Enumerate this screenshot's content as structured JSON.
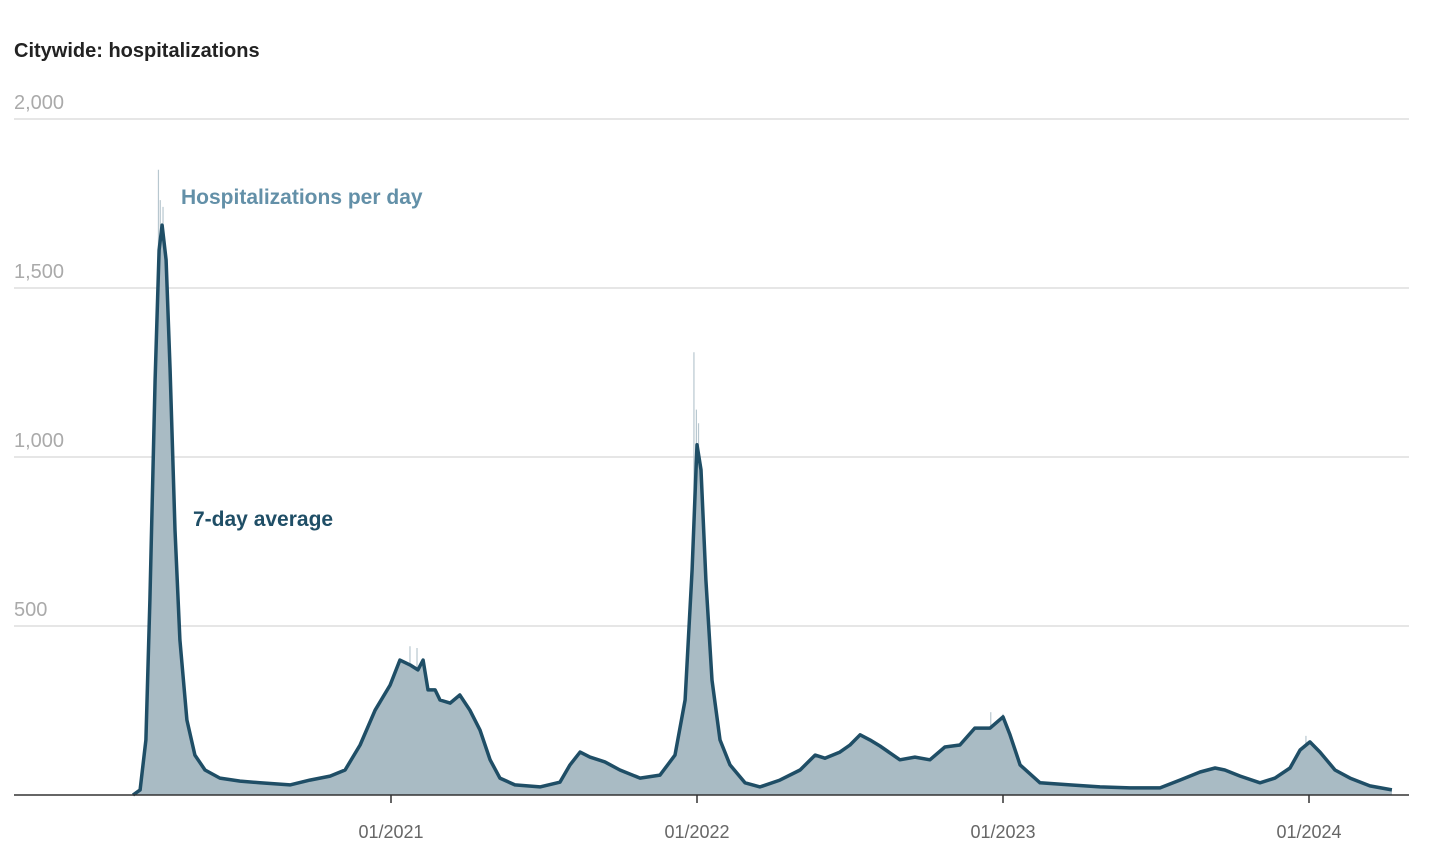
{
  "chart_data": {
    "type": "area",
    "title": "Citywide: hospitalizations",
    "xlabel": "",
    "ylabel": "",
    "ylim": [
      0,
      2000
    ],
    "xlim": [
      2020.15,
      2024.3
    ],
    "grid": true,
    "y_ticks": [
      {
        "value": 500,
        "label": "500"
      },
      {
        "value": 1000,
        "label": "1,000"
      },
      {
        "value": 1500,
        "label": "1,500"
      },
      {
        "value": 2000,
        "label": "2,000"
      }
    ],
    "x_ticks": [
      {
        "value": 2021,
        "label": "01/2021"
      },
      {
        "value": 2022,
        "label": "01/2022"
      },
      {
        "value": 2023,
        "label": "01/2023"
      },
      {
        "value": 2024,
        "label": "01/2024"
      }
    ],
    "annotations": [
      {
        "text": "Hospitalizations per day",
        "series": "daily"
      },
      {
        "text": "7-day average",
        "series": "average"
      }
    ],
    "colors": {
      "daily": "#a9bbc4",
      "average": "#1f4e66",
      "daily_label": "#6390a8"
    },
    "daily_spikes": [
      {
        "x": 2020.24,
        "y": 1850
      },
      {
        "x": 2020.246,
        "y": 1760
      },
      {
        "x": 2020.255,
        "y": 1740
      },
      {
        "x": 2021.062,
        "y": 440
      },
      {
        "x": 2021.085,
        "y": 435
      },
      {
        "x": 2021.99,
        "y": 1310
      },
      {
        "x": 2021.998,
        "y": 1140
      },
      {
        "x": 2022.005,
        "y": 1100
      },
      {
        "x": 2022.96,
        "y": 245
      },
      {
        "x": 2023.0,
        "y": 240
      },
      {
        "x": 2023.99,
        "y": 175
      }
    ],
    "series": [
      {
        "name": "7-day average",
        "x": [
          2020.157,
          2020.18,
          2020.199,
          2020.212,
          2020.229,
          2020.242,
          2020.252,
          2020.265,
          2020.278,
          2020.294,
          2020.31,
          2020.333,
          2020.359,
          2020.392,
          2020.441,
          2020.507,
          2020.572,
          2020.67,
          2020.735,
          2020.801,
          2020.85,
          2020.899,
          2020.948,
          2020.997,
          2021.029,
          2021.062,
          2021.088,
          2021.105,
          2021.121,
          2021.144,
          2021.16,
          2021.193,
          2021.225,
          2021.258,
          2021.291,
          2021.324,
          2021.356,
          2021.405,
          2021.487,
          2021.552,
          2021.585,
          2021.618,
          2021.65,
          2021.699,
          2021.748,
          2021.814,
          2021.879,
          2021.928,
          2021.961,
          2021.984,
          2022.0,
          2022.013,
          2022.029,
          2022.049,
          2022.075,
          2022.108,
          2022.157,
          2022.206,
          2022.271,
          2022.337,
          2022.386,
          2022.418,
          2022.467,
          2022.5,
          2022.533,
          2022.565,
          2022.598,
          2022.663,
          2022.712,
          2022.761,
          2022.81,
          2022.859,
          2022.908,
          2022.958,
          2023.0,
          2023.023,
          2023.056,
          2023.121,
          2023.219,
          2023.317,
          2023.415,
          2023.513,
          2023.578,
          2023.644,
          2023.693,
          2023.725,
          2023.775,
          2023.84,
          2023.889,
          2023.938,
          2023.971,
          2024.003,
          2024.036,
          2024.085,
          2024.134,
          2024.199,
          2024.271
        ],
        "y": [
          0,
          15,
          163,
          577,
          1228,
          1612,
          1686,
          1583,
          1257,
          784,
          459,
          222,
          118,
          74,
          50,
          41,
          36,
          30,
          44,
          56,
          74,
          148,
          251,
          325,
          399,
          385,
          370,
          399,
          311,
          311,
          281,
          272,
          296,
          251,
          192,
          104,
          50,
          30,
          24,
          38,
          89,
          127,
          112,
          98,
          74,
          50,
          59,
          118,
          281,
          666,
          1036,
          962,
          636,
          340,
          163,
          89,
          36,
          24,
          44,
          74,
          118,
          109,
          127,
          148,
          178,
          163,
          145,
          104,
          112,
          104,
          142,
          148,
          198,
          198,
          231,
          178,
          89,
          36,
          30,
          24,
          21,
          21,
          44,
          68,
          80,
          74,
          56,
          36,
          50,
          80,
          133,
          157,
          127,
          74,
          50,
          27,
          15
        ]
      }
    ]
  }
}
